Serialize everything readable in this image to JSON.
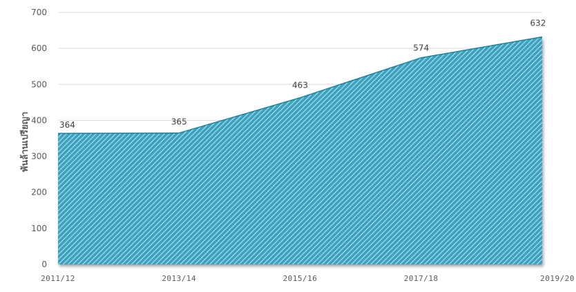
{
  "chart_data": {
    "type": "area",
    "categories": [
      "2011/12",
      "2013/14",
      "2015/16",
      "2017/18",
      "2019/20"
    ],
    "values": [
      364,
      365,
      463,
      574,
      632
    ],
    "data_labels": [
      "364",
      "365",
      "463",
      "574",
      "632"
    ],
    "ylabel": "พันล้านเปรียญา",
    "xlabel": "",
    "ylim": [
      0,
      700
    ],
    "yticks": [
      0,
      100,
      200,
      300,
      400,
      500,
      600,
      700
    ],
    "grid": true,
    "legend": "none",
    "colors": {
      "fill": "#3aa3bf",
      "hatch": "#e8f6fa",
      "edge": "#1f7f9a",
      "grid": "#d9d9d9",
      "text": "#595959"
    }
  }
}
